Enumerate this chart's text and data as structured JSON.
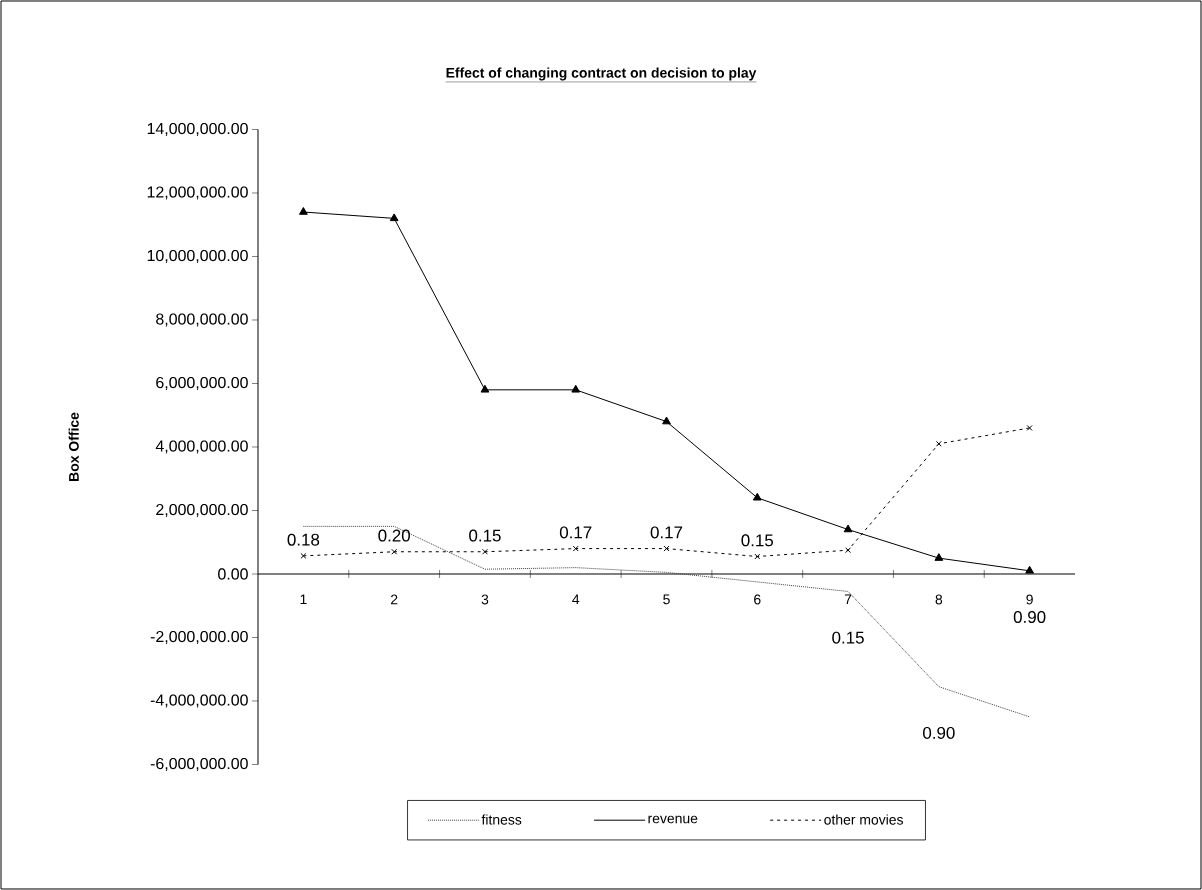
{
  "chart_data": {
    "type": "line",
    "title": "Effect of changing contract on decision to play",
    "ylabel": "Box Office",
    "categories": [
      "1",
      "2",
      "3",
      "4",
      "5",
      "6",
      "7",
      "8",
      "9"
    ],
    "series": [
      {
        "name": "fitness",
        "color": "#404040",
        "line_style": "dotted",
        "marker": "none",
        "values": [
          1500000,
          1500000,
          150000,
          200000,
          50000,
          -250000,
          -550000,
          -3550000,
          -4500000
        ]
      },
      {
        "name": "revenue",
        "color": "#000000",
        "line_style": "solid",
        "marker": "triangle",
        "values": [
          11400000,
          11200000,
          5800000,
          5800000,
          4800000,
          2400000,
          1400000,
          500000,
          100000
        ]
      },
      {
        "name": "other movies",
        "color": "#000000",
        "line_style": "dashed",
        "marker": "cross",
        "values": [
          570000,
          700000,
          700000,
          800000,
          800000,
          550000,
          750000,
          4100000,
          4600000
        ]
      }
    ],
    "annotations": [
      {
        "text": "0.18",
        "x": "1",
        "y": 570000
      },
      {
        "text": "0.20",
        "x": "2",
        "y": 700000
      },
      {
        "text": "0.15",
        "x": "3",
        "y": 700000
      },
      {
        "text": "0.17",
        "x": "4",
        "y": 800000
      },
      {
        "text": "0.17",
        "x": "5",
        "y": 800000
      },
      {
        "text": "0.15",
        "x": "6",
        "y": 550000
      },
      {
        "text": "0.15",
        "x": "7",
        "y": -550000
      },
      {
        "text": "0.90",
        "x": "8",
        "y": -3550000
      },
      {
        "text": "0.90",
        "x": "9",
        "y": 100000
      }
    ],
    "ylim": [
      -6000000,
      14000000
    ],
    "yticks": [
      {
        "value": -6000000,
        "label": "-6,000,000.00"
      },
      {
        "value": -4000000,
        "label": "-4,000,000.00"
      },
      {
        "value": -2000000,
        "label": "-2,000,000.00"
      },
      {
        "value": 0,
        "label": "0.00"
      },
      {
        "value": 2000000,
        "label": "2,000,000.00"
      },
      {
        "value": 4000000,
        "label": "4,000,000.00"
      },
      {
        "value": 6000000,
        "label": "6,000,000.00"
      },
      {
        "value": 8000000,
        "label": "8,000,000.00"
      },
      {
        "value": 10000000,
        "label": "10,000,000.00"
      },
      {
        "value": 12000000,
        "label": "12,000,000.00"
      },
      {
        "value": 14000000,
        "label": "14,000,000.00"
      }
    ],
    "legend": "bottom"
  }
}
